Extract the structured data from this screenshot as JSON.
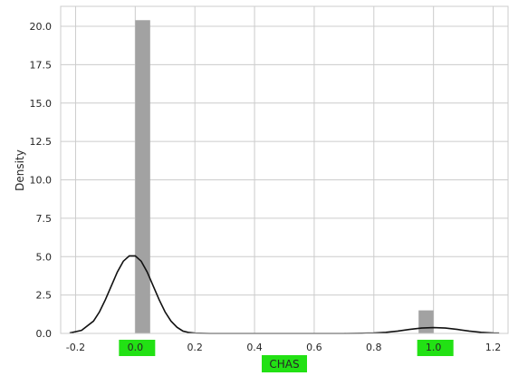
{
  "chart_data": {
    "type": "bar",
    "title": "",
    "xlabel": "CHAS",
    "ylabel": "Density",
    "xlim": [
      -0.25,
      1.25
    ],
    "ylim": [
      0,
      21.3
    ],
    "xticks": [
      "-0.2",
      "0.0",
      "0.2",
      "0.4",
      "0.6",
      "0.8",
      "1.0",
      "1.2"
    ],
    "xtick_values": [
      -0.2,
      0.0,
      0.2,
      0.4,
      0.6,
      0.8,
      1.0,
      1.2
    ],
    "yticks": [
      "0.0",
      "2.5",
      "5.0",
      "7.5",
      "10.0",
      "12.5",
      "15.0",
      "17.5",
      "20.0"
    ],
    "ytick_values": [
      0,
      2.5,
      5,
      7.5,
      10,
      12.5,
      15,
      17.5,
      20
    ],
    "grid": true,
    "highlighted_xticks": [
      "0.0",
      "1.0"
    ],
    "highlight_color": "#22e114",
    "bar_color": "#a2a2a2",
    "kde_color": "#111111",
    "histogram": {
      "bins": [
        {
          "x0": 0.0,
          "x1": 0.05,
          "density": 20.4
        },
        {
          "x0": 0.95,
          "x1": 1.0,
          "density": 1.5
        }
      ]
    },
    "kde": {
      "x": [
        -0.22,
        -0.18,
        -0.14,
        -0.12,
        -0.1,
        -0.08,
        -0.06,
        -0.04,
        -0.02,
        0.0,
        0.02,
        0.04,
        0.06,
        0.08,
        0.1,
        0.12,
        0.14,
        0.16,
        0.18,
        0.2,
        0.25,
        0.3,
        0.4,
        0.5,
        0.6,
        0.7,
        0.76,
        0.8,
        0.84,
        0.88,
        0.92,
        0.96,
        1.0,
        1.04,
        1.08,
        1.12,
        1.16,
        1.2,
        1.22
      ],
      "y": [
        0.03,
        0.2,
        0.8,
        1.4,
        2.2,
        3.1,
        4.0,
        4.7,
        5.05,
        5.05,
        4.7,
        4.0,
        3.1,
        2.2,
        1.4,
        0.8,
        0.4,
        0.15,
        0.06,
        0.02,
        0.0,
        0.0,
        0.0,
        0.0,
        0.0,
        0.0,
        0.01,
        0.03,
        0.07,
        0.15,
        0.26,
        0.35,
        0.38,
        0.35,
        0.26,
        0.15,
        0.07,
        0.03,
        0.02
      ]
    }
  }
}
